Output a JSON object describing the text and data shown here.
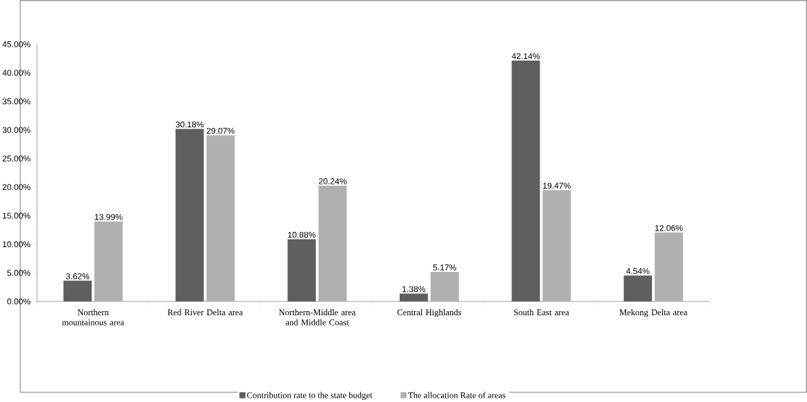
{
  "chart_data": {
    "type": "bar",
    "categories": [
      "Northern mountainous area",
      "Red River Delta area",
      "Northern-Middle area and Middle Coast",
      "Central Highlands",
      "South East area",
      "Mekong Delta area"
    ],
    "series": [
      {
        "name": "Contribution rate to the state budget",
        "color": "#5f5f5f",
        "values": [
          3.62,
          30.18,
          10.88,
          1.38,
          42.14,
          4.54
        ],
        "value_labels": [
          "3.62%",
          "30.18%",
          "10.88%",
          "1.38%",
          "42.14%",
          "4.54%"
        ]
      },
      {
        "name": "The allocation Rate of areas",
        "color": "#b0b0b0",
        "values": [
          13.99,
          29.07,
          20.24,
          5.17,
          19.47,
          12.06
        ],
        "value_labels": [
          "13.99%",
          "29.07%",
          "20.24%",
          "5.17%",
          "19.47%",
          "12.06%"
        ]
      }
    ],
    "ylim": [
      0,
      45
    ],
    "yticks": [
      {
        "value": 0,
        "label": "0.00%"
      },
      {
        "value": 5,
        "label": "5.00%"
      },
      {
        "value": 10,
        "label": "10.00%"
      },
      {
        "value": 15,
        "label": "15.00%"
      },
      {
        "value": 20,
        "label": "20.00%"
      },
      {
        "value": 25,
        "label": "25.00%"
      },
      {
        "value": 30,
        "label": "30.00%"
      },
      {
        "value": 35,
        "label": "35.00%"
      },
      {
        "value": 40,
        "label": "40.00%"
      },
      {
        "value": 45,
        "label": "45.00%"
      }
    ],
    "legend": "bottom"
  }
}
